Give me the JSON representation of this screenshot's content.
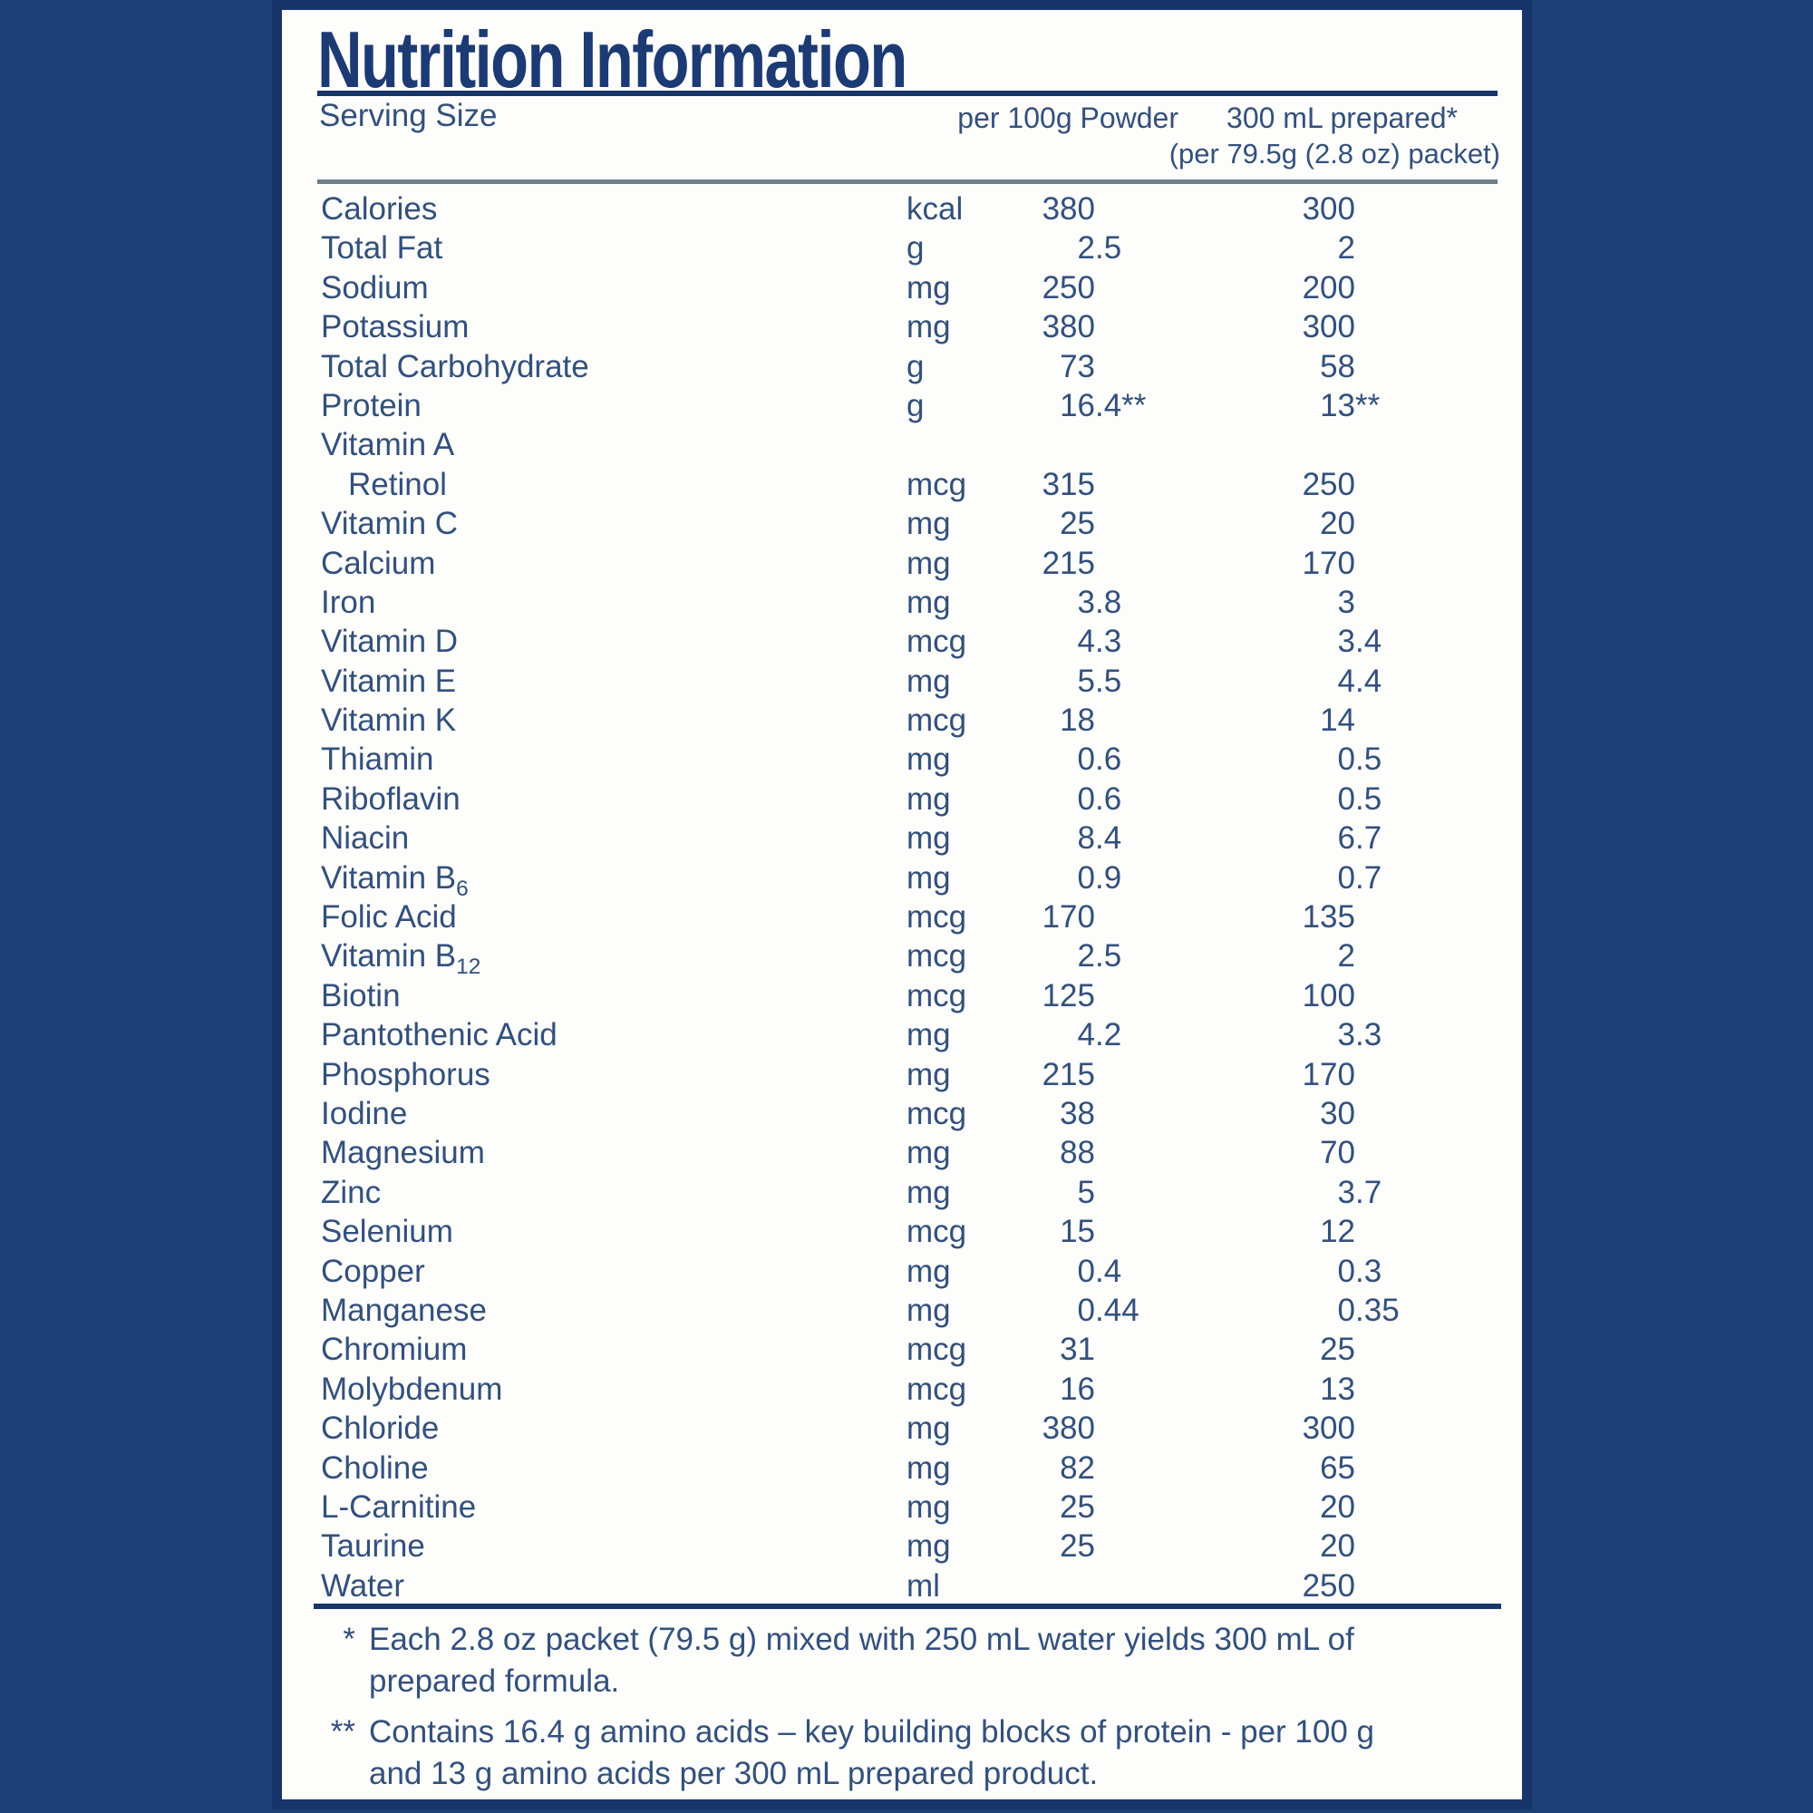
{
  "title": "Nutrition Information",
  "header": {
    "serving_size_label": "Serving Size",
    "col_powder": "per 100g Powder",
    "col_prepared_line1": "300 mL prepared*",
    "col_prepared_line2": "(per 79.5g (2.8 oz) packet)"
  },
  "rows": [
    {
      "label": "Calories",
      "unit": "kcal",
      "per100g": "380",
      "prepared": "300"
    },
    {
      "label": "Total Fat",
      "unit": "g",
      "per100g": "2.5",
      "prepared": "2"
    },
    {
      "label": "Sodium",
      "unit": "mg",
      "per100g": "250",
      "prepared": "200"
    },
    {
      "label": "Potassium",
      "unit": "mg",
      "per100g": "380",
      "prepared": "300"
    },
    {
      "label": "Total Carbohydrate",
      "unit": "g",
      "per100g": "73",
      "prepared": "58"
    },
    {
      "label": "Protein",
      "unit": "g",
      "per100g": "16.4**",
      "prepared": "13**"
    },
    {
      "label": "Vitamin A",
      "unit": "",
      "per100g": "",
      "prepared": ""
    },
    {
      "label": "Retinol",
      "indent": true,
      "unit": "mcg",
      "per100g": "315",
      "prepared": "250"
    },
    {
      "label": "Vitamin C",
      "unit": "mg",
      "per100g": "25",
      "prepared": "20"
    },
    {
      "label": "Calcium",
      "unit": "mg",
      "per100g": "215",
      "prepared": "170"
    },
    {
      "label": "Iron",
      "unit": "mg",
      "per100g": "3.8",
      "prepared": "3"
    },
    {
      "label": "Vitamin D",
      "unit": "mcg",
      "per100g": "4.3",
      "prepared": "3.4"
    },
    {
      "label": "Vitamin E",
      "unit": "mg",
      "per100g": "5.5",
      "prepared": "4.4"
    },
    {
      "label": "Vitamin K",
      "unit": "mcg",
      "per100g": "18",
      "prepared": "14"
    },
    {
      "label": "Thiamin",
      "unit": "mg",
      "per100g": "0.6",
      "prepared": "0.5"
    },
    {
      "label": "Riboflavin",
      "unit": "mg",
      "per100g": "0.6",
      "prepared": "0.5"
    },
    {
      "label": "Niacin",
      "unit": "mg",
      "per100g": "8.4",
      "prepared": "6.7"
    },
    {
      "label": "Vitamin B",
      "sub": "6",
      "unit": "mg",
      "per100g": "0.9",
      "prepared": "0.7"
    },
    {
      "label": "Folic Acid",
      "unit": "mcg",
      "per100g": "170",
      "prepared": "135"
    },
    {
      "label": "Vitamin B",
      "sub": "12",
      "unit": "mcg",
      "per100g": "2.5",
      "prepared": "2"
    },
    {
      "label": "Biotin",
      "unit": "mcg",
      "per100g": "125",
      "prepared": "100"
    },
    {
      "label": "Pantothenic Acid",
      "unit": "mg",
      "per100g": "4.2",
      "prepared": "3.3"
    },
    {
      "label": "Phosphorus",
      "unit": "mg",
      "per100g": "215",
      "prepared": "170"
    },
    {
      "label": "Iodine",
      "unit": "mcg",
      "per100g": "38",
      "prepared": "30"
    },
    {
      "label": "Magnesium",
      "unit": "mg",
      "per100g": "88",
      "prepared": "70"
    },
    {
      "label": "Zinc",
      "unit": "mg",
      "per100g": "5",
      "prepared": "3.7"
    },
    {
      "label": "Selenium",
      "unit": "mcg",
      "per100g": "15",
      "prepared": "12"
    },
    {
      "label": "Copper",
      "unit": "mg",
      "per100g": "0.4",
      "prepared": "0.3"
    },
    {
      "label": "Manganese",
      "unit": "mg",
      "per100g": "0.44",
      "prepared": "0.35"
    },
    {
      "label": "Chromium",
      "unit": "mcg",
      "per100g": "31",
      "prepared": "25"
    },
    {
      "label": "Molybdenum",
      "unit": "mcg",
      "per100g": "16",
      "prepared": "13"
    },
    {
      "label": "Chloride",
      "unit": "mg",
      "per100g": "380",
      "prepared": "300"
    },
    {
      "label": "Choline",
      "unit": "mg",
      "per100g": "82",
      "prepared": "65"
    },
    {
      "label": "L-Carnitine",
      "unit": "mg",
      "per100g": "25",
      "prepared": "20"
    },
    {
      "label": "Taurine",
      "unit": "mg",
      "per100g": "25",
      "prepared": "20"
    },
    {
      "label": "Water",
      "unit": "ml",
      "per100g": "",
      "prepared": "250"
    }
  ],
  "footnotes": [
    {
      "marker": "*",
      "lines": [
        "Each 2.8 oz packet (79.5 g) mixed with 250 mL water yields 300 mL of",
        "prepared formula."
      ]
    },
    {
      "marker": "**",
      "lines": [
        "Contains 16.4 g amino acids – key building blocks of protein - per 100 g",
        "and 13 g amino acids per 300 mL prepared product."
      ]
    }
  ],
  "colors": {
    "background": "#1d4076",
    "panel": "#fdfdfb",
    "border": "#17356a",
    "title": "#1c3a74",
    "text": "#33507c",
    "gray_rule": "#6e7e8c"
  }
}
